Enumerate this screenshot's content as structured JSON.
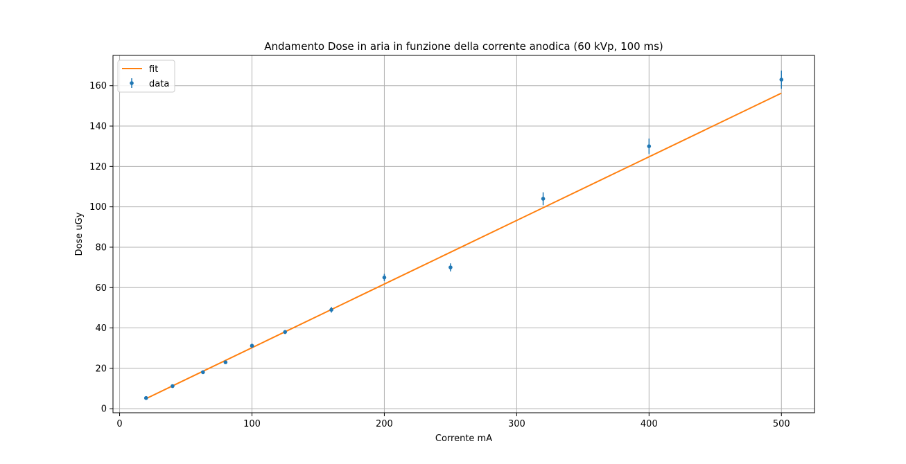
{
  "chart_data": {
    "type": "scatter",
    "title": "Andamento Dose in aria in funzione della corrente anodica (60 kVp, 100 ms)",
    "xlabel": "Corrente mA",
    "ylabel": "Dose uGy",
    "xlim": [
      -5,
      525
    ],
    "ylim": [
      -2,
      175
    ],
    "xticks": [
      0,
      100,
      200,
      300,
      400,
      500
    ],
    "yticks": [
      0,
      20,
      40,
      60,
      80,
      100,
      120,
      140,
      160
    ],
    "grid": true,
    "legend": {
      "position": "top-left",
      "entries": [
        "fit",
        "data"
      ]
    },
    "series": [
      {
        "name": "data",
        "kind": "errorbar",
        "color": "#1f77b4",
        "x": [
          20,
          40,
          63,
          80,
          100,
          125,
          160,
          200,
          250,
          320,
          400,
          500
        ],
        "y": [
          5.3,
          11.2,
          18.1,
          23.0,
          31.2,
          38.0,
          49.0,
          65.0,
          70.0,
          104.0,
          130.0,
          163.0
        ],
        "yerr": [
          0.3,
          0.5,
          0.6,
          0.8,
          1.0,
          1.0,
          1.4,
          1.8,
          2.0,
          3.2,
          3.8,
          4.5
        ]
      },
      {
        "name": "fit",
        "kind": "line",
        "color": "#ff7f0e",
        "x": [
          20,
          500
        ],
        "y": [
          5.0,
          156.3
        ]
      }
    ]
  }
}
